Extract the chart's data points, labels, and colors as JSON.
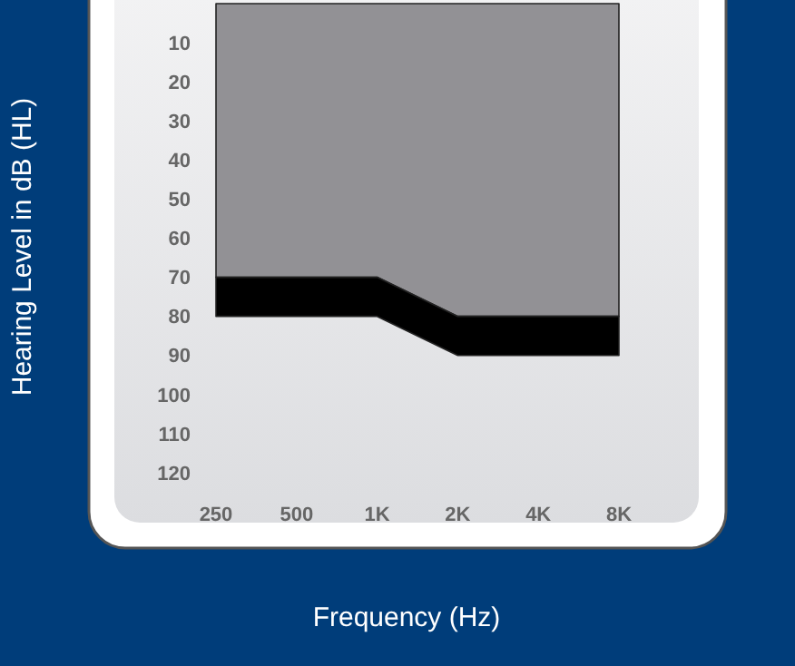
{
  "chart_data": {
    "type": "area",
    "stacked": true,
    "xlabel": "Frequency (Hz)",
    "ylabel": "Hearing Level in dB (HL)",
    "categories": [
      "250",
      "500",
      "1K",
      "2K",
      "4K",
      "8K"
    ],
    "ylim": [
      120,
      0
    ],
    "yticks": [
      10,
      20,
      30,
      40,
      50,
      60,
      70,
      80,
      90,
      100,
      110,
      120
    ],
    "series": [
      {
        "color": "#929195",
        "values": [
          70,
          70,
          70,
          80,
          80,
          80
        ]
      },
      {
        "color": "#000000",
        "values": [
          10,
          10,
          10,
          10,
          10,
          10
        ]
      }
    ]
  }
}
